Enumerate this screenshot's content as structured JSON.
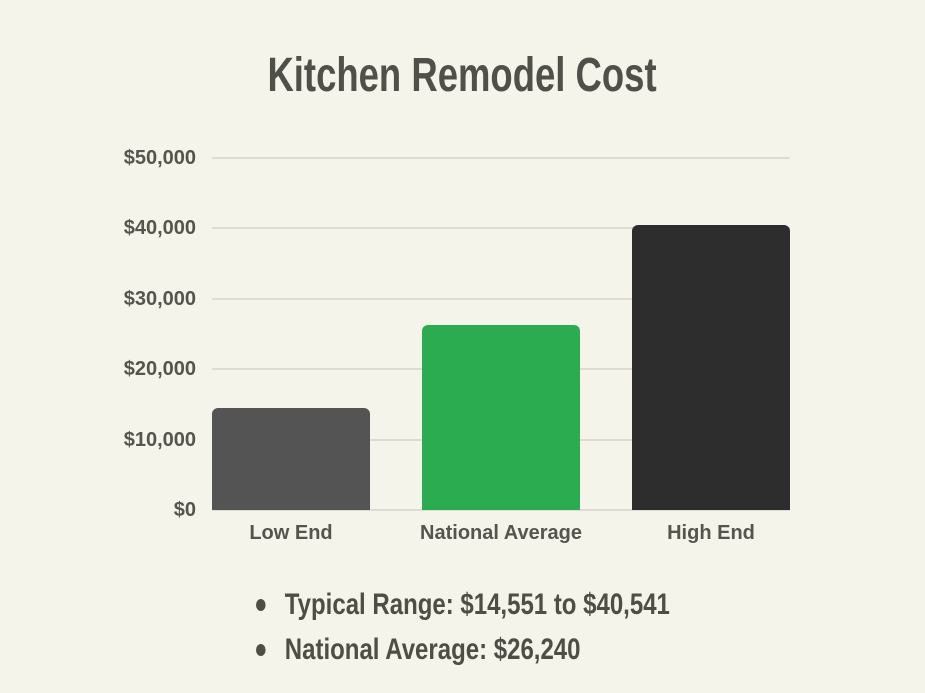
{
  "chart_data": {
    "type": "bar",
    "title": "Kitchen Remodel Cost",
    "categories": [
      "Low End",
      "National Average",
      "High End"
    ],
    "values": [
      14551,
      26240,
      40541
    ],
    "bar_colors": [
      "#545454",
      "#2BAC51",
      "#2D2D2D"
    ],
    "xlabel": "",
    "ylabel": "",
    "ylim": [
      0,
      50000
    ],
    "ytick_step": 10000,
    "ytick_labels": [
      "$0",
      "$10,000",
      "$20,000",
      "$30,000",
      "$40,000",
      "$50,000"
    ],
    "grid": true,
    "legend": false
  },
  "notes": {
    "items": [
      "Typical Range: $14,551 to $40,541",
      "National Average: $26,240"
    ]
  },
  "colors": {
    "background": "#F5F4EA",
    "gridline": "#DEDCD2",
    "title_text": "#50504A",
    "axis_text": "#55544E",
    "note_text": "#4E4E47"
  }
}
